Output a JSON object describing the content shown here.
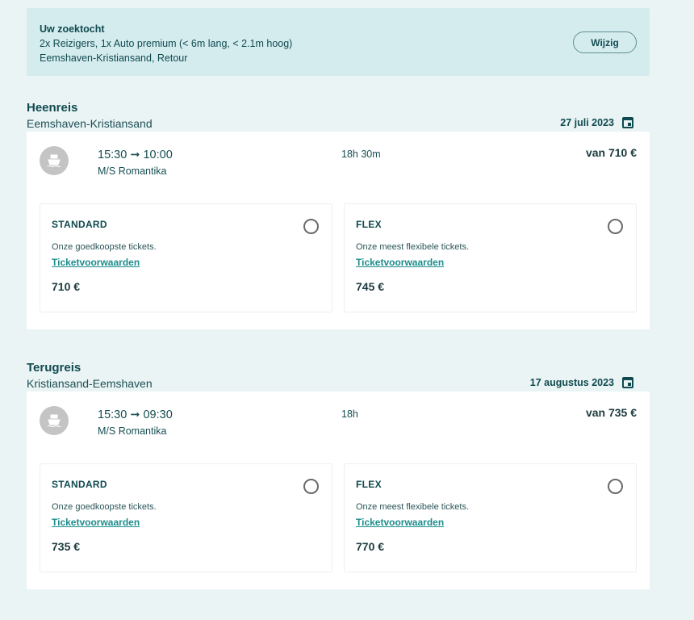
{
  "search": {
    "title": "Uw zoektocht",
    "passengers": "2x Reizigers, 1x Auto premium (< 6m lang, < 2.1m hoog)",
    "route": "Eemshaven-Kristiansand, Retour",
    "edit_label": "Wijzig"
  },
  "colors": {
    "background": "#eaf4f5",
    "search_bg": "#d5ecef",
    "text": "#0f4a4f",
    "link": "#1c8c8c"
  },
  "legs": [
    {
      "title": "Heenreis",
      "route": "Eemshaven-Kristiansand",
      "date": "27 juli 2023",
      "times": "15:30 ➞ 10:00",
      "vessel": "M/S Romantika",
      "duration": "18h 30m",
      "from_price": "van 710 €",
      "tickets": [
        {
          "name": "STANDARD",
          "desc": "Onze goedkoopste tickets.",
          "link": "Ticketvoorwaarden",
          "price": "710 €",
          "selected": false
        },
        {
          "name": "FLEX",
          "desc": "Onze meest flexibele tickets.",
          "link": "Ticketvoorwaarden",
          "price": "745 €",
          "selected": false
        }
      ]
    },
    {
      "title": "Terugreis",
      "route": "Kristiansand-Eemshaven",
      "date": "17 augustus 2023",
      "times": "15:30 ➞ 09:30",
      "vessel": "M/S Romantika",
      "duration": "18h",
      "from_price": "van 735 €",
      "tickets": [
        {
          "name": "STANDARD",
          "desc": "Onze goedkoopste tickets.",
          "link": "Ticketvoorwaarden",
          "price": "735 €",
          "selected": false
        },
        {
          "name": "FLEX",
          "desc": "Onze meest flexibele tickets.",
          "link": "Ticketvoorwaarden",
          "price": "770 €",
          "selected": false
        }
      ]
    }
  ]
}
